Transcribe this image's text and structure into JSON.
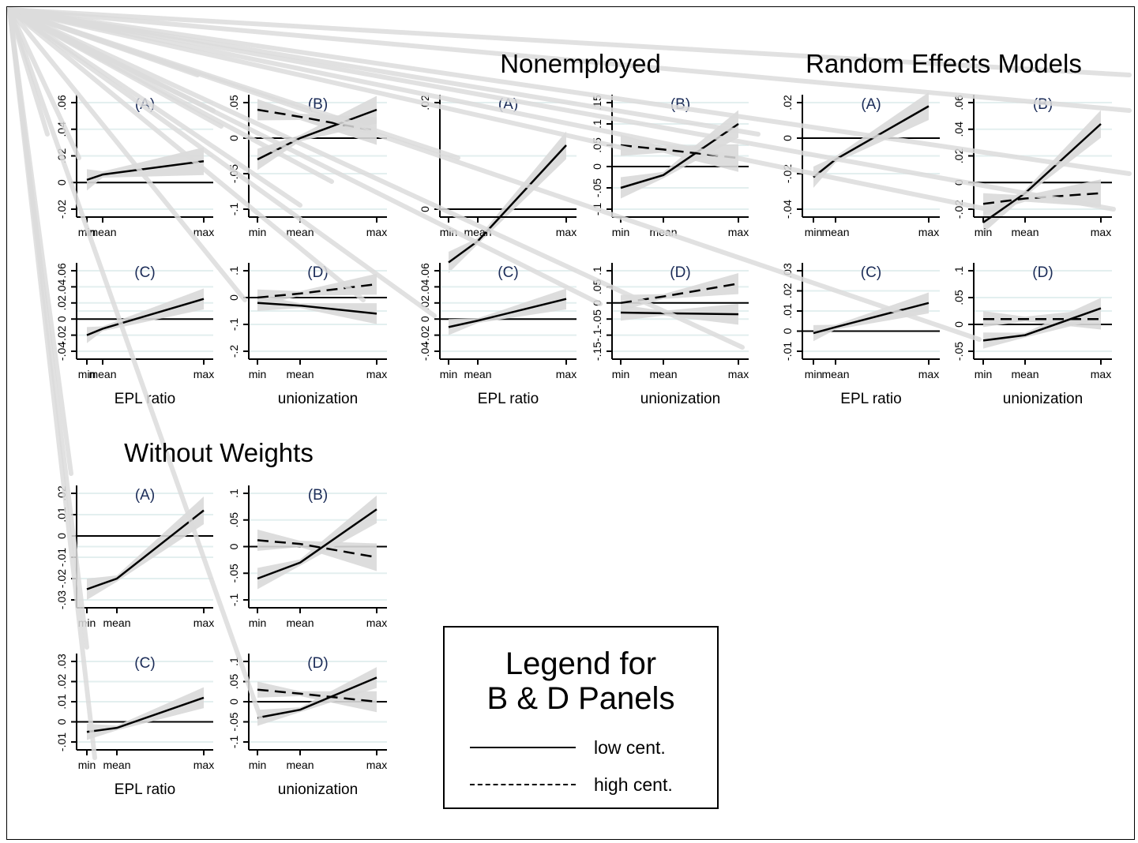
{
  "section_titles": {
    "nonemployed": "Nonemployed",
    "random_effects": "Random Effects Models",
    "without_weights": "Without Weights"
  },
  "legend": {
    "title_line1": "Legend for",
    "title_line2": "B & D Panels",
    "low": "low cent.",
    "high": "high cent."
  },
  "x_titles": {
    "epl": "EPL ratio",
    "union": "unionization"
  },
  "colors": {
    "series": "#000000",
    "ci_band": "#d9d9d9",
    "grid": "#e3efef",
    "panel_letter": "#1a2b57"
  },
  "chart_data": [
    {
      "panel": "left-top (A)",
      "type": "line",
      "categories": [
        "min",
        "mean",
        "max"
      ],
      "yticks": [
        "-.02",
        "0",
        ".02",
        ".04",
        ".06"
      ],
      "series": [
        {
          "values": [
            0.002,
            0.006,
            0.016
          ]
        }
      ]
    },
    {
      "panel": "left-top (B)",
      "type": "line",
      "categories": [
        "min",
        "mean",
        "max"
      ],
      "yticks": [
        "-.1",
        "-.05",
        "0",
        ".05"
      ],
      "series": [
        {
          "name": "low cent.",
          "values": [
            -0.03,
            0.0,
            0.04
          ]
        },
        {
          "name": "high cent.",
          "values": [
            0.04,
            0.03,
            0.01
          ]
        }
      ]
    },
    {
      "panel": "left-bottom (C)",
      "type": "line",
      "categories": [
        "min",
        "mean",
        "max"
      ],
      "yticks": [
        "-.04",
        "-.02",
        "0",
        ".02",
        ".04",
        ".06"
      ],
      "series": [
        {
          "values": [
            -0.02,
            -0.012,
            0.025
          ]
        }
      ]
    },
    {
      "panel": "left-bottom (D)",
      "type": "line",
      "categories": [
        "min",
        "mean",
        "max"
      ],
      "yticks": [
        "-.2",
        "-.1",
        "0",
        ".1"
      ],
      "series": [
        {
          "name": "low cent.",
          "values": [
            -0.02,
            -0.03,
            -0.06
          ]
        },
        {
          "name": "high cent.",
          "values": [
            0.0,
            0.015,
            0.05
          ]
        }
      ]
    },
    {
      "panel": "Nonemployed (A)",
      "type": "line",
      "categories": [
        "min",
        "mean",
        "max"
      ],
      "yticks": [
        "0",
        ".02"
      ],
      "series": [
        {
          "values": [
            -0.01,
            -0.006,
            0.012
          ]
        }
      ]
    },
    {
      "panel": "Nonemployed (B)",
      "type": "line",
      "categories": [
        "min",
        "mean",
        "max"
      ],
      "yticks": [
        "-.1",
        "-.05",
        "0",
        ".05",
        ".1",
        ".15"
      ],
      "series": [
        {
          "name": "low cent.",
          "values": [
            -0.05,
            -0.02,
            0.1
          ]
        },
        {
          "name": "high cent.",
          "values": [
            0.05,
            0.04,
            0.02
          ]
        }
      ]
    },
    {
      "panel": "Nonemployed (C)",
      "type": "line",
      "categories": [
        "min",
        "mean",
        "max"
      ],
      "yticks": [
        "-.04",
        "-.02",
        "0",
        ".02",
        ".04",
        ".06"
      ],
      "series": [
        {
          "values": [
            -0.01,
            -0.002,
            0.025
          ]
        }
      ]
    },
    {
      "panel": "Nonemployed (D)",
      "type": "line",
      "categories": [
        "min",
        "mean",
        "max"
      ],
      "yticks": [
        "-.15",
        "-.1",
        "-.05",
        "0",
        ".05",
        ".1"
      ],
      "series": [
        {
          "name": "low cent.",
          "values": [
            -0.03,
            -0.032,
            -0.035
          ]
        },
        {
          "name": "high cent.",
          "values": [
            0.0,
            0.02,
            0.06
          ]
        }
      ]
    },
    {
      "panel": "Random Effects Models (A)",
      "type": "line",
      "categories": [
        "min",
        "mean",
        "max"
      ],
      "yticks": [
        "-.04",
        "-.02",
        "0",
        ".02"
      ],
      "series": [
        {
          "values": [
            -0.022,
            -0.012,
            0.018
          ]
        }
      ]
    },
    {
      "panel": "Random Effects Models (B)",
      "type": "line",
      "categories": [
        "min",
        "mean",
        "max"
      ],
      "yticks": [
        "-.02",
        "0",
        ".02",
        ".04",
        ".06"
      ],
      "series": [
        {
          "name": "low cent.",
          "values": [
            -0.03,
            -0.008,
            0.044
          ]
        },
        {
          "name": "high cent.",
          "values": [
            -0.016,
            -0.012,
            -0.008
          ]
        }
      ]
    },
    {
      "panel": "Random Effects Models (C)",
      "type": "line",
      "categories": [
        "min",
        "mean",
        "max"
      ],
      "yticks": [
        "-.01",
        "0",
        ".01",
        ".02",
        ".03"
      ],
      "series": [
        {
          "values": [
            -0.001,
            0.002,
            0.014
          ]
        }
      ]
    },
    {
      "panel": "Random Effects Models (D)",
      "type": "line",
      "categories": [
        "min",
        "mean",
        "max"
      ],
      "yticks": [
        "-.05",
        "0",
        ".05",
        ".1"
      ],
      "series": [
        {
          "name": "low cent.",
          "values": [
            -0.03,
            -0.02,
            0.03
          ]
        },
        {
          "name": "high cent.",
          "values": [
            0.01,
            0.01,
            0.01
          ]
        }
      ]
    },
    {
      "panel": "Without Weights (A)",
      "type": "line",
      "categories": [
        "min",
        "mean",
        "max"
      ],
      "yticks": [
        "-.03",
        "-.02",
        "-.01",
        "0",
        ".01",
        ".02"
      ],
      "series": [
        {
          "values": [
            -0.025,
            -0.02,
            0.012
          ]
        }
      ]
    },
    {
      "panel": "Without Weights (B)",
      "type": "line",
      "categories": [
        "min",
        "mean",
        "max"
      ],
      "yticks": [
        "-.1",
        "-.05",
        "0",
        ".05",
        ".1"
      ],
      "series": [
        {
          "name": "low cent.",
          "values": [
            -0.06,
            -0.03,
            0.07
          ]
        },
        {
          "name": "high cent.",
          "values": [
            0.012,
            0.005,
            -0.02
          ]
        }
      ]
    },
    {
      "panel": "Without Weights (C)",
      "type": "line",
      "categories": [
        "min",
        "mean",
        "max"
      ],
      "yticks": [
        "-.01",
        "0",
        ".01",
        ".02",
        ".03"
      ],
      "series": [
        {
          "values": [
            -0.005,
            -0.003,
            0.012
          ]
        }
      ]
    },
    {
      "panel": "Without Weights (D)",
      "type": "line",
      "categories": [
        "min",
        "mean",
        "max"
      ],
      "yticks": [
        "-.1",
        "-.05",
        "0",
        ".05",
        ".1"
      ],
      "series": [
        {
          "name": "low cent.",
          "values": [
            -0.04,
            -0.02,
            0.06
          ]
        },
        {
          "name": "high cent.",
          "values": [
            0.03,
            0.02,
            0.0
          ]
        }
      ]
    }
  ]
}
